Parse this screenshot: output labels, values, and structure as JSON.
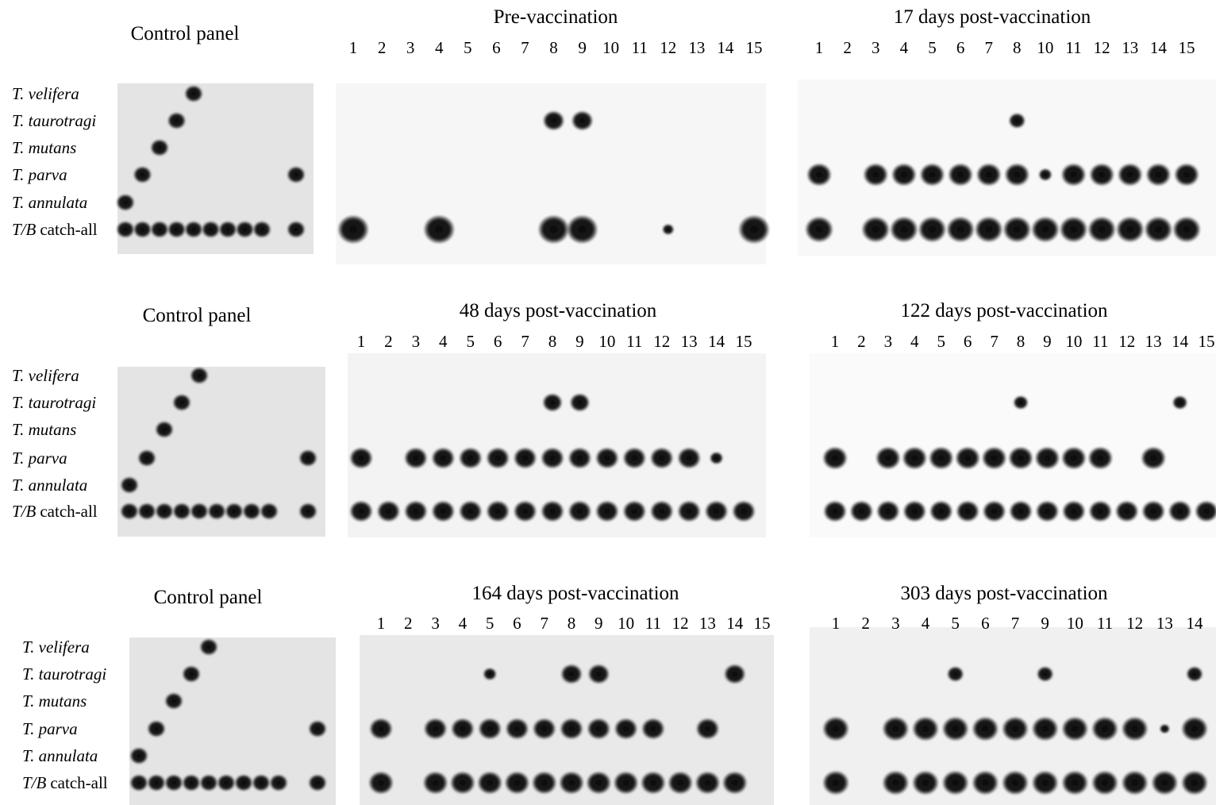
{
  "rows": [
    {
      "control": {
        "title": "Control panel",
        "species": [
          "T. velifera",
          "T. taurotragi",
          "T. mutans",
          "T. parva",
          "T. annulata"
        ],
        "catch_all": {
          "prefix": "T/B",
          "suffix": "catch-all"
        }
      },
      "panels": [
        {
          "title": "Pre-vaccination",
          "lanes": [
            1,
            2,
            3,
            4,
            5,
            6,
            7,
            8,
            9,
            10,
            11,
            12,
            13,
            14,
            15
          ]
        },
        {
          "title": "17 days post-vaccination",
          "lanes": [
            1,
            2,
            3,
            4,
            5,
            6,
            7,
            8,
            10,
            11,
            12,
            13,
            14,
            15
          ]
        }
      ]
    },
    {
      "control": {
        "title": "Control panel",
        "species": [
          "T. velifera",
          "T. taurotragi",
          "T. mutans",
          "T. parva",
          "T. annulata"
        ],
        "catch_all": {
          "prefix": "T/B",
          "suffix": "catch-all"
        }
      },
      "panels": [
        {
          "title": "48 days post-vaccination",
          "lanes": [
            1,
            2,
            3,
            4,
            5,
            6,
            7,
            8,
            9,
            10,
            11,
            12,
            13,
            14,
            15
          ]
        },
        {
          "title": "122 days post-vaccination",
          "lanes": [
            1,
            2,
            3,
            4,
            5,
            6,
            7,
            8,
            9,
            10,
            11,
            12,
            13,
            14,
            15
          ]
        }
      ]
    },
    {
      "control": {
        "title": "Control panel",
        "species": [
          "T. velifera",
          "T. taurotragi",
          "T. mutans",
          "T. parva",
          "T. annulata"
        ],
        "catch_all": {
          "prefix": "T/B",
          "suffix": "catch-all"
        }
      },
      "panels": [
        {
          "title": "164 days post-vaccination",
          "lanes": [
            1,
            2,
            3,
            4,
            5,
            6,
            7,
            8,
            9,
            10,
            11,
            12,
            13,
            14,
            15
          ]
        },
        {
          "title": "303 days post-vaccination",
          "lanes": [
            1,
            2,
            3,
            4,
            5,
            6,
            7,
            9,
            10,
            11,
            12,
            13,
            14
          ]
        }
      ]
    }
  ]
}
